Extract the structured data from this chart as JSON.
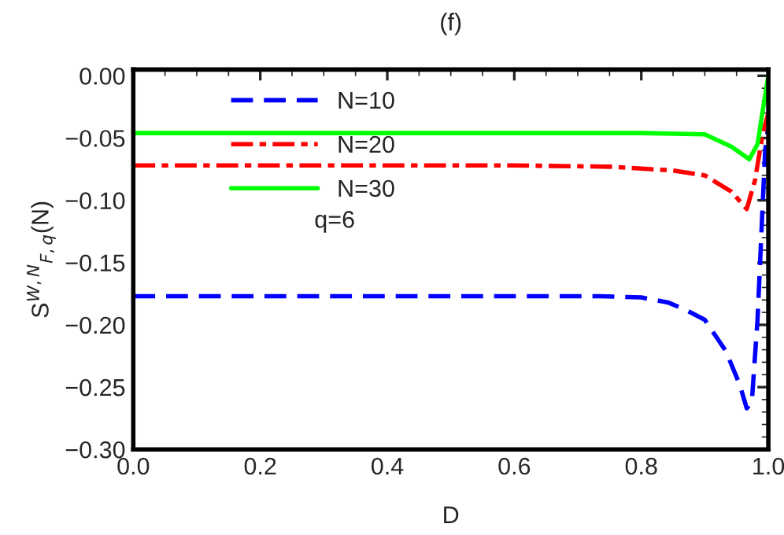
{
  "chart_data": {
    "type": "line",
    "title": "(f)",
    "xlabel": "D",
    "ylabel": "S$^{W,N}$$_{F,q}$(N)",
    "xlim": [
      0,
      1
    ],
    "ylim": [
      -0.3,
      0.005
    ],
    "xticks": [
      {
        "value": 0,
        "label": "0.0"
      },
      0.2,
      0.4,
      0.6,
      {
        "value": 0.8,
        "label": "0.8"
      },
      {
        "value": 1,
        "label": "1.0"
      }
    ],
    "yticks": [
      {
        "value": -0.3,
        "label": "−0.30"
      },
      {
        "value": -0.25,
        "label": "−0.25"
      },
      {
        "value": -0.2,
        "label": "−0.20"
      },
      {
        "value": -0.15,
        "label": "−0.15"
      },
      {
        "value": -0.1,
        "label": "−0.10"
      },
      {
        "value": -0.05,
        "label": "−0.05"
      },
      {
        "value": 0,
        "label": "0.00"
      }
    ],
    "legend": "top left",
    "grid": false,
    "annotations": [
      "q=6"
    ],
    "series": [
      {
        "name": "N=10",
        "color": "#0000ff",
        "line_style": "dashed",
        "x": [
          0,
          0.2,
          0.4,
          0.6,
          0.734,
          0.8,
          0.842,
          0.87,
          0.9,
          0.933,
          0.955,
          0.966,
          0.974,
          0.983,
          0.991,
          0.995,
          1.0
        ],
        "values": [
          -0.177,
          -0.177,
          -0.177,
          -0.177,
          -0.177,
          -0.178,
          -0.182,
          -0.188,
          -0.196,
          -0.221,
          -0.248,
          -0.267,
          -0.262,
          -0.196,
          -0.105,
          -0.06,
          -0.04
        ]
      },
      {
        "name": "N=20",
        "color": "#ff0000",
        "line_style": "dashdot",
        "x": [
          0,
          0.2,
          0.4,
          0.6,
          0.75,
          0.85,
          0.9,
          0.942,
          0.966,
          0.979,
          0.991,
          1.0
        ],
        "values": [
          -0.072,
          -0.072,
          -0.072,
          -0.072,
          -0.073,
          -0.076,
          -0.08,
          -0.093,
          -0.107,
          -0.084,
          -0.047,
          -0.03
        ]
      },
      {
        "name": "N=30",
        "color": "#00ff00",
        "line_style": "solid",
        "x": [
          0,
          0.2,
          0.4,
          0.6,
          0.8,
          0.9,
          0.942,
          0.97,
          0.983,
          0.993,
          1.0
        ],
        "values": [
          -0.046,
          -0.046,
          -0.046,
          -0.046,
          -0.046,
          -0.047,
          -0.057,
          -0.067,
          -0.055,
          -0.022,
          0.0
        ]
      }
    ]
  }
}
